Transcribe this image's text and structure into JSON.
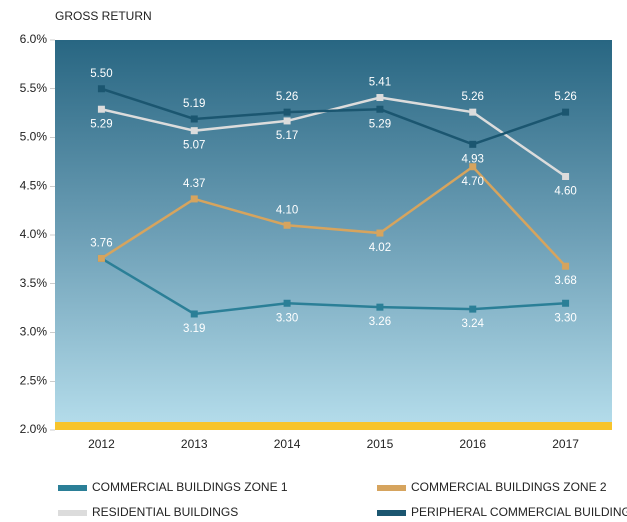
{
  "chart_data": {
    "type": "line",
    "ylabel": "GROSS RETURN",
    "categories": [
      "2012",
      "2013",
      "2014",
      "2015",
      "2016",
      "2017"
    ],
    "ylim": [
      2,
      6
    ],
    "yticks": [
      {
        "value": 2,
        "label": "2.0%"
      },
      {
        "value": 2.5,
        "label": "2.5%"
      },
      {
        "value": 3,
        "label": "3.0%"
      },
      {
        "value": 3.5,
        "label": "3.5%"
      },
      {
        "value": 4,
        "label": "4.0%"
      },
      {
        "value": 4.5,
        "label": "4.5%"
      },
      {
        "value": 5,
        "label": "5.0%"
      },
      {
        "value": 5.5,
        "label": "5.5%"
      },
      {
        "value": 6,
        "label": "6.0%"
      }
    ],
    "series": [
      {
        "name": "COMMERCIAL BUILDINGS ZONE 1",
        "color": "#2b7f97",
        "values": [
          3.76,
          3.19,
          3.3,
          3.26,
          3.24,
          3.3
        ],
        "value_labels": [
          null,
          "3.19",
          "3.30",
          "3.26",
          "3.24",
          "3.30"
        ]
      },
      {
        "name": "COMMERCIAL BUILDINGS ZONE 2",
        "color": "#d6a45e",
        "values": [
          3.76,
          4.37,
          4.1,
          4.02,
          4.7,
          3.68
        ],
        "value_labels": [
          "3.76",
          "4.37",
          "4.10",
          "4.02",
          "4.70",
          "3.68"
        ]
      },
      {
        "name": "RESIDENTIAL BUILDINGS",
        "color": "#dcdcdc",
        "values": [
          5.29,
          5.07,
          5.17,
          5.41,
          5.26,
          4.6
        ],
        "value_labels": [
          "5.29",
          "5.07",
          "5.17",
          "5.41",
          "5.26",
          "4.60"
        ]
      },
      {
        "name": "PERIPHERAL COMMERCIAL BUILDINGS",
        "color": "#1b5670",
        "values": [
          5.5,
          5.19,
          5.26,
          5.29,
          4.93,
          5.26
        ],
        "value_labels": [
          "5.50",
          "5.19",
          "5.26",
          "5.29",
          "4.93",
          "5.26"
        ]
      }
    ]
  }
}
